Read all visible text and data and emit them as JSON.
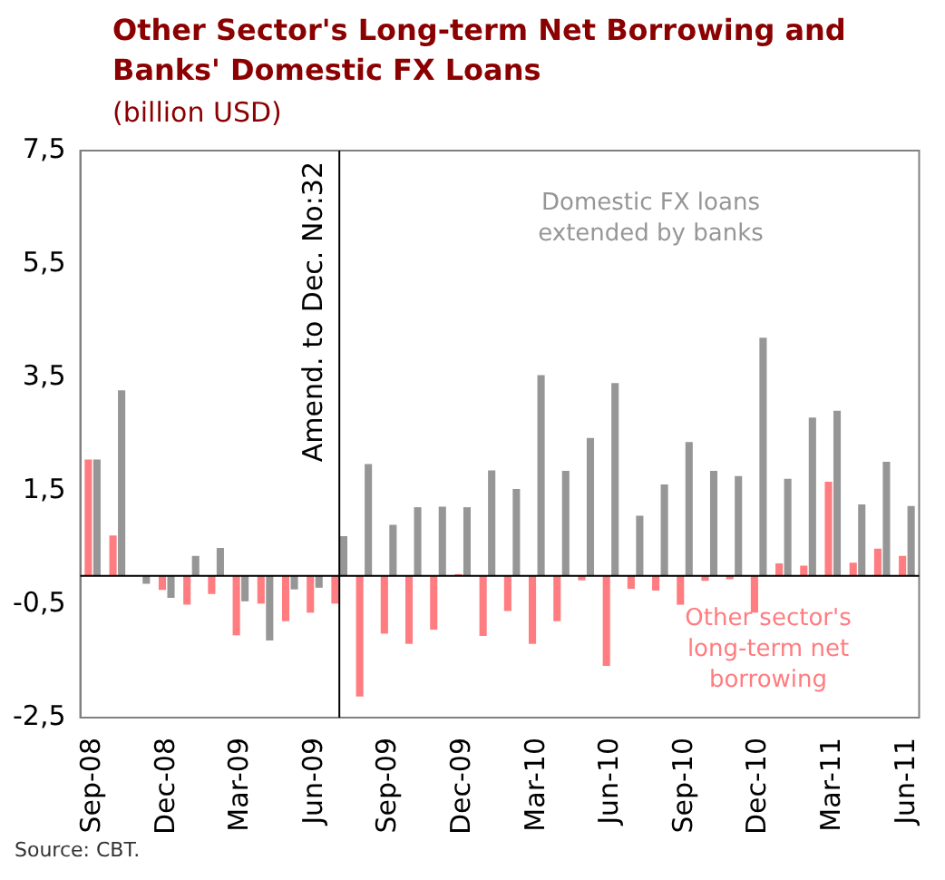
{
  "chart_data": {
    "type": "bar",
    "title": "Other Sector's Long-term Net Borrowing and Banks' Domestic FX Loans",
    "subtitle": "(billion USD)",
    "x": [
      "2008-09",
      "2008-10",
      "2008-11",
      "2008-12",
      "2009-01",
      "2009-02",
      "2009-03",
      "2009-04",
      "2009-05",
      "2009-06",
      "2009-07",
      "2009-08",
      "2009-09",
      "2009-10",
      "2009-11",
      "2009-12",
      "2010-01",
      "2010-02",
      "2010-03",
      "2010-04",
      "2010-05",
      "2010-06",
      "2010-07",
      "2010-08",
      "2010-09",
      "2010-10",
      "2010-11",
      "2010-12",
      "2011-01",
      "2011-02",
      "2011-03",
      "2011-04",
      "2011-05",
      "2011-06"
    ],
    "xticks": [
      {
        "value": "2008-09",
        "label": "Sep-08"
      },
      {
        "value": "2008-12",
        "label": "Dec-08"
      },
      {
        "value": "2009-03",
        "label": "Mar-09"
      },
      {
        "value": "2009-06",
        "label": "Jun-09"
      },
      {
        "value": "2009-09",
        "label": "Sep-09"
      },
      {
        "value": "2009-12",
        "label": "Dec-09"
      },
      {
        "value": "2010-03",
        "label": "Mar-10"
      },
      {
        "value": "2010-06",
        "label": "Jun-10"
      },
      {
        "value": "2010-09",
        "label": "Sep-10"
      },
      {
        "value": "2010-12",
        "label": "Dec-10"
      },
      {
        "value": "2011-03",
        "label": "Mar-11"
      },
      {
        "value": "2011-06",
        "label": "Jun-11"
      }
    ],
    "series": [
      {
        "name": "Other sector's long-term net borrowing",
        "color": "#ff7c80",
        "values": [
          2.05,
          0.71,
          0,
          -0.25,
          -0.51,
          -0.32,
          -1.05,
          -0.49,
          -0.8,
          -0.65,
          -0.49,
          -2.13,
          -1.02,
          -1.2,
          -0.95,
          0.03,
          -1.06,
          -0.62,
          -1.2,
          -0.8,
          -0.08,
          -1.59,
          -0.23,
          -0.26,
          -0.51,
          -0.09,
          -0.06,
          -0.65,
          0.22,
          0.18,
          1.66,
          0.23,
          0.48,
          0.35
        ]
      },
      {
        "name": "Domestic FX loans extended by banks",
        "color": "#969696",
        "values": [
          2.05,
          3.27,
          -0.14,
          -0.39,
          0.35,
          0.49,
          -0.45,
          -1.14,
          -0.24,
          -0.21,
          0.7,
          1.97,
          0.9,
          1.21,
          1.22,
          1.21,
          1.86,
          1.53,
          3.54,
          1.85,
          2.43,
          3.4,
          1.06,
          1.61,
          2.36,
          1.85,
          1.76,
          4.2,
          1.71,
          2.79,
          2.91,
          1.26,
          2.01,
          1.23
        ]
      }
    ],
    "xlim": [
      "2008-09",
      "2011-06"
    ],
    "ylim": [
      -2.5,
      7.5
    ],
    "yticks": [
      {
        "value": -2.5,
        "label": "-2,5"
      },
      {
        "value": -0.5,
        "label": "-0,5"
      },
      {
        "value": 1.5,
        "label": "1,5"
      },
      {
        "value": 3.5,
        "label": "3,5"
      },
      {
        "value": 5.5,
        "label": "5,5"
      },
      {
        "value": 7.5,
        "label": "7,5"
      }
    ],
    "ref_lines": [
      {
        "axis": "x",
        "value": "2009-07",
        "label": "Amend. to Dec. No:32",
        "color": "#000000"
      }
    ],
    "annotations": [
      "Source: CBT."
    ],
    "legend": false
  }
}
